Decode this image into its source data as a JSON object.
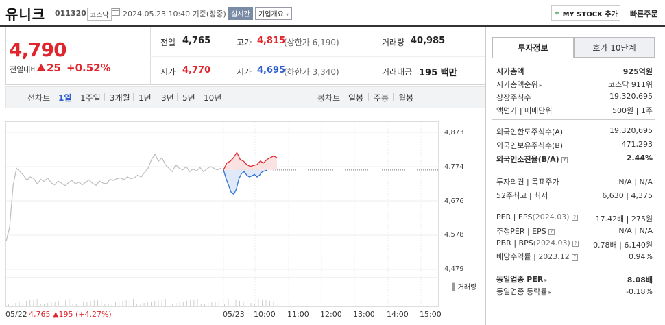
{
  "header": {
    "name": "유니크",
    "code": "011320",
    "market": "코스닥",
    "datetime": "2024.05.23 10:40  기준(장중)",
    "live_label": "실시간",
    "overview_label": "기업개요",
    "mystock_label": "MY STOCK 추가",
    "quick_order_label": "빠른주문"
  },
  "price": {
    "current": "4,790",
    "change_label": "전일대비",
    "change": "25",
    "change_pct": "+0.52%",
    "prev_label": "전일",
    "prev": "4,765",
    "high_label": "고가",
    "high": "4,815",
    "upper_limit": "(상한가 6,190)",
    "volume_label": "거래량",
    "volume": "40,985",
    "open_label": "시가",
    "open": "4,770",
    "low_label": "저가",
    "low": "4,695",
    "lower_limit": "(하한가 3,340)",
    "amount_label": "거래대금",
    "amount": "195 백만"
  },
  "period_bar": {
    "line_label": "선차트",
    "periods": [
      "1일",
      "1주일",
      "3개월",
      "1년",
      "3년",
      "5년",
      "10년"
    ],
    "candle_label": "봉차트",
    "candles": [
      "일봉",
      "주봉",
      "월봉"
    ]
  },
  "chart_data": {
    "type": "line",
    "y_ticks": [
      "4,873",
      "4,774",
      "4,676",
      "4,578",
      "4,479"
    ],
    "ylim": [
      4479,
      4873
    ],
    "x_ticks": [
      "05/22",
      "05/23",
      "10:00",
      "11:00",
      "12:00",
      "13:00",
      "14:00",
      "15:00"
    ],
    "prev_close": 4765,
    "volume_label": "거래량",
    "prev_day_summary": "4,765 ▲195 (+4.27%)",
    "series": [
      {
        "values": [
          4560,
          4600,
          4720,
          4770,
          4760,
          4750,
          4735,
          4745,
          4740,
          4725,
          4738,
          4732,
          4742,
          4728,
          4722,
          4733,
          4727,
          4720,
          4728,
          4735,
          4725,
          4730,
          4722,
          4730,
          4736,
          4726,
          4721,
          4733,
          4727,
          4725,
          4738,
          4735,
          4740,
          4742,
          4737,
          4745,
          4740,
          4742,
          4750,
          4745,
          4758,
          4770,
          4795,
          4810,
          4790,
          4800,
          4780,
          4770,
          4760,
          4780,
          4770,
          4765,
          4775,
          4760,
          4768,
          4762,
          4772,
          4760,
          4768,
          4775,
          4770,
          4765,
          4770
        ]
      },
      {
        "values": [
          4765,
          4785,
          4790,
          4800,
          4815,
          4795,
          4790,
          4780,
          4775,
          4778,
          4780,
          4790,
          4785,
          4795,
          4800,
          4805,
          4800
        ]
      },
      {
        "values": [
          4765,
          4740,
          4720,
          4700,
          4695,
          4710,
          4740,
          4755,
          4760,
          4750,
          4745,
          4748,
          4752,
          4745,
          4750,
          4760,
          4762,
          4765
        ]
      }
    ]
  },
  "panel": {
    "tab_invest": "투자정보",
    "tab_hoga": "호가 10단계",
    "rows1": [
      {
        "label": "시가총액",
        "value": "925억원"
      },
      {
        "label": "시가총액순위",
        "value": "코스닥 911위"
      },
      {
        "label": "상장주식수",
        "value": "19,320,695"
      },
      {
        "label": "액면가 | 매매단위",
        "value": "500원 | 1주"
      }
    ],
    "rows2": [
      {
        "label": "외국인한도주식수(A)",
        "value": "19,320,695"
      },
      {
        "label": "외국인보유주식수(B)",
        "value": "471,293"
      },
      {
        "label": "외국인소진율(B/A)",
        "value": "2.44%"
      }
    ],
    "rows3": [
      {
        "label": "투자의견 | 목표주가",
        "value": "N/A | N/A"
      },
      {
        "label": "52주최고 | 최저",
        "value": "6,630 | 4,375"
      }
    ],
    "rows4": [
      {
        "label": "PER | EPS",
        "label_sub": "(2024.03)",
        "value": "17.42배 | 275원"
      },
      {
        "label": "추정PER | EPS",
        "label_sub": "",
        "value": "N/A | N/A"
      },
      {
        "label": "PBR | BPS",
        "label_sub": "(2024.03)",
        "value": "0.78배 | 6,140원"
      },
      {
        "label": "배당수익률",
        "label_sub": "2023.12",
        "value": "0.94%"
      }
    ],
    "rows5": [
      {
        "label": "동일업종 PER",
        "value": "8.08배"
      },
      {
        "label": "동일업종 등락률",
        "value": "-0.18%"
      }
    ]
  }
}
